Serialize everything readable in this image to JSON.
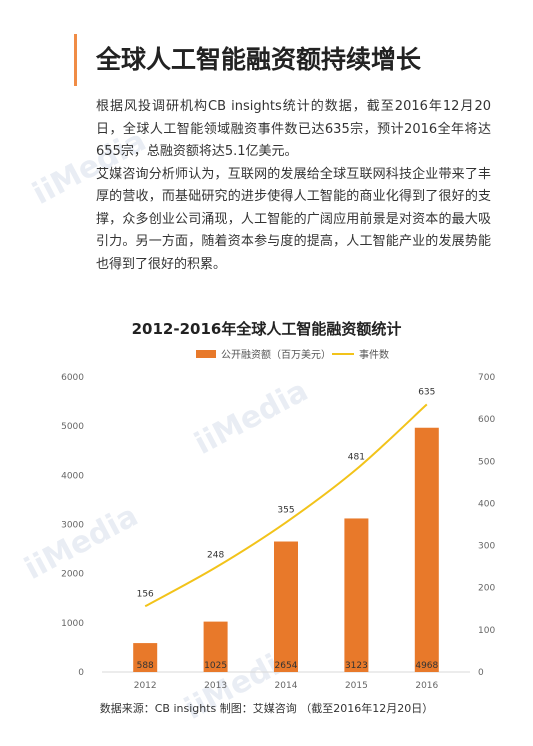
{
  "article": {
    "title": "全球人工智能融资额持续增长",
    "paragraph1": "根据风投调研机构CB insights统计的数据，截至2016年12月20日，全球人工智能领域融资事件数已达635宗，预计2016全年将达655宗，总融资额将达5.1亿美元。",
    "paragraph2": "艾媒咨询分析师认为，互联网的发展给全球互联网科技企业带来了丰厚的营收，而基础研究的进步使得人工智能的商业化得到了很好的支撑，众多创业公司涌现，人工智能的广阔应用前景是对资本的最大吸引力。另一方面，随着资本参与度的提高，人工智能产业的发展势能也得到了很好的积累。"
  },
  "watermark": "iiMedia",
  "chart_data": {
    "type": "bar",
    "title": "2012-2016年全球人工智能融资额统计",
    "categories": [
      "2012",
      "2013",
      "2014",
      "2015",
      "2016"
    ],
    "series": [
      {
        "name": "公开融资额（百万美元）",
        "type": "bar",
        "axis": "left",
        "color": "#e8792a",
        "values": [
          588,
          1025,
          2654,
          3123,
          4968
        ]
      },
      {
        "name": "事件数",
        "type": "line",
        "axis": "right",
        "color": "#f2c31a",
        "values": [
          156,
          248,
          355,
          481,
          635
        ]
      }
    ],
    "left_axis": {
      "min": 0,
      "max": 6000,
      "ticks": [
        "0",
        "1000",
        "2000",
        "3000",
        "4000",
        "5000",
        "6000"
      ]
    },
    "right_axis": {
      "min": 0,
      "max": 700,
      "ticks": [
        "0",
        "100",
        "200",
        "300",
        "400",
        "500",
        "600",
        "700"
      ]
    },
    "grid": false,
    "legend_position": "top-center"
  },
  "source": "数据来源：CB insights  制图：艾媒咨询 （截至2016年12月20日）"
}
